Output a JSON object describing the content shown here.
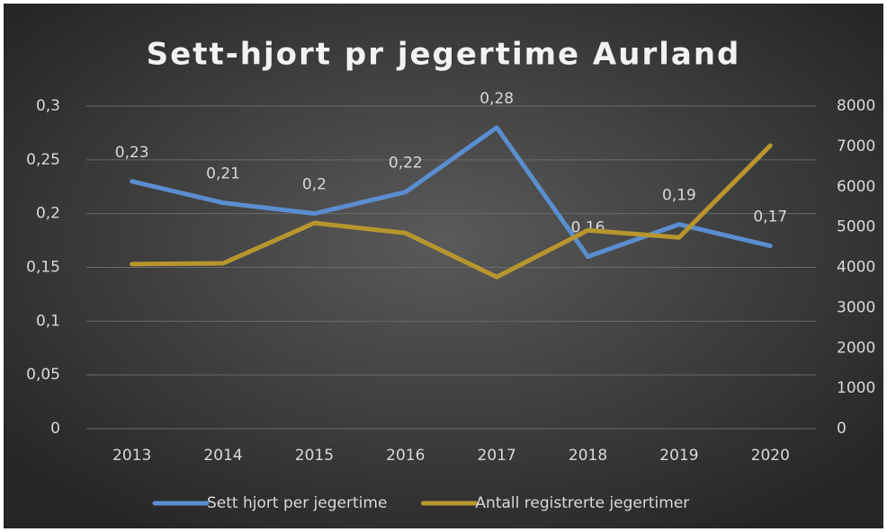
{
  "chart_data": {
    "type": "line",
    "title": "Sett-hjort pr jegertime Aurland",
    "categories": [
      "2013",
      "2014",
      "2015",
      "2016",
      "2017",
      "2018",
      "2019",
      "2020"
    ],
    "series": [
      {
        "name": "Sett hjort per jegertime",
        "color": "#5a8ed0",
        "values": [
          0.23,
          0.21,
          0.2,
          0.22,
          0.28,
          0.16,
          0.19,
          0.17
        ],
        "value_labels": [
          "0,23",
          "0,21",
          "0,2",
          "0,22",
          "0,28",
          "0,16",
          "0,19",
          "0,17"
        ]
      },
      {
        "name": "Antall registrerte jegertimer",
        "color": "#b8962e",
        "axis": "y2",
        "values": [
          4080,
          4100,
          5100,
          4850,
          3760,
          4920,
          4740,
          7020
        ]
      }
    ],
    "ylim": [
      0,
      0.3
    ],
    "yticks": [
      0,
      {
        "value": 0.05,
        "label": "0,05"
      },
      {
        "value": 0.1,
        "label": "0,1"
      },
      {
        "value": 0.15,
        "label": "0,15"
      },
      {
        "value": 0.2,
        "label": "0,2"
      },
      {
        "value": 0.25,
        "label": "0,25"
      },
      {
        "value": 0.3,
        "label": "0,3"
      }
    ],
    "y2lim": [
      0,
      8000
    ],
    "y2ticks": [
      0,
      1000,
      2000,
      3000,
      4000,
      5000,
      6000,
      7000,
      8000
    ],
    "grid": true,
    "legend": "bottom"
  }
}
